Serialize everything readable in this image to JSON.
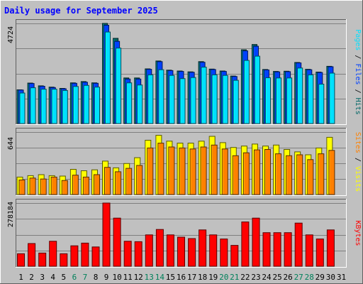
{
  "chart_data": {
    "type": "bar",
    "title": "Daily usage for September 2025",
    "categories": [
      "1",
      "2",
      "3",
      "4",
      "5",
      "6",
      "7",
      "8",
      "9",
      "10",
      "11",
      "12",
      "13",
      "14",
      "15",
      "16",
      "17",
      "18",
      "19",
      "20",
      "21",
      "22",
      "23",
      "24",
      "25",
      "26",
      "27",
      "28",
      "29",
      "30",
      "31"
    ],
    "weekend_days": [
      "6",
      "7",
      "13",
      "14",
      "20",
      "21",
      "27",
      "28"
    ],
    "panels": [
      {
        "name": "hits-files-pages",
        "ymax_label": "4724",
        "ylim": [
          0,
          4724
        ],
        "right_label": [
          "Pages",
          "Files",
          "Hits"
        ],
        "series": [
          {
            "name": "Hits",
            "color": "#006666",
            "values": [
              1590,
              1910,
              1780,
              1720,
              1660,
              1920,
              1980,
              1920,
              4724,
              4020,
              2150,
              2150,
              2580,
              2950,
              2520,
              2480,
              2440,
              2920,
              2570,
              2480,
              2240,
              3480,
              3730,
              2550,
              2460,
              2470,
              2880,
              2560,
              2430,
              2700,
              null
            ]
          },
          {
            "name": "Files",
            "color": "#0040ff",
            "values": [
              1580,
              1890,
              1760,
              1700,
              1640,
              1900,
              1950,
              1900,
              4640,
              3880,
              2100,
              2100,
              2560,
              2920,
              2500,
              2460,
              2420,
              2890,
              2550,
              2460,
              2220,
              3430,
              3650,
              2530,
              2440,
              2450,
              2860,
              2540,
              2410,
              2680,
              null
            ]
          },
          {
            "name": "Pages",
            "color": "#00e0ff",
            "values": [
              1440,
              1690,
              1620,
              1620,
              1560,
              1750,
              1800,
              1720,
              4320,
              3560,
              1920,
              1820,
              2300,
              2540,
              2270,
              2120,
              2170,
              2660,
              2300,
              2270,
              2040,
              2980,
              3180,
              2160,
              2150,
              2150,
              2620,
              2300,
              1860,
              2380,
              null
            ]
          }
        ]
      },
      {
        "name": "visits-sites",
        "ymax_label": "644",
        "ylim": [
          0,
          644
        ],
        "right_label": [
          "Sites",
          "Visits"
        ],
        "series": [
          {
            "name": "Visits",
            "color": "#ffff00",
            "values": [
              180,
              195,
              205,
              195,
              190,
              260,
              245,
              255,
              345,
              275,
              320,
              380,
              560,
              610,
              550,
              530,
              530,
              550,
              600,
              535,
              485,
              500,
              520,
              500,
              510,
              465,
              440,
              410,
              480,
              590,
              null
            ]
          },
          {
            "name": "Sites",
            "color": "#ff8000",
            "values": [
              150,
              170,
              160,
              180,
              145,
              200,
              180,
              205,
              280,
              235,
              270,
              300,
              480,
              530,
              490,
              480,
              470,
              490,
              510,
              470,
              400,
              430,
              460,
              465,
              420,
              400,
              410,
              360,
              420,
              455,
              null
            ]
          }
        ]
      },
      {
        "name": "kbytes",
        "ymax_label": "278184",
        "ylim": [
          0,
          278184
        ],
        "right_label": [
          "KBytes"
        ],
        "series": [
          {
            "name": "KBytes",
            "color": "#ff0000",
            "values": [
              55000,
              100000,
              58000,
              110000,
              55000,
              90000,
              102000,
              85000,
              278184,
              212000,
              110000,
              108000,
              138000,
              162000,
              138000,
              128000,
              122000,
              160000,
              138000,
              120000,
              92000,
              195000,
              212000,
              148000,
              148000,
              148000,
              190000,
              138000,
              120000,
              160000,
              null
            ]
          }
        ]
      }
    ]
  }
}
